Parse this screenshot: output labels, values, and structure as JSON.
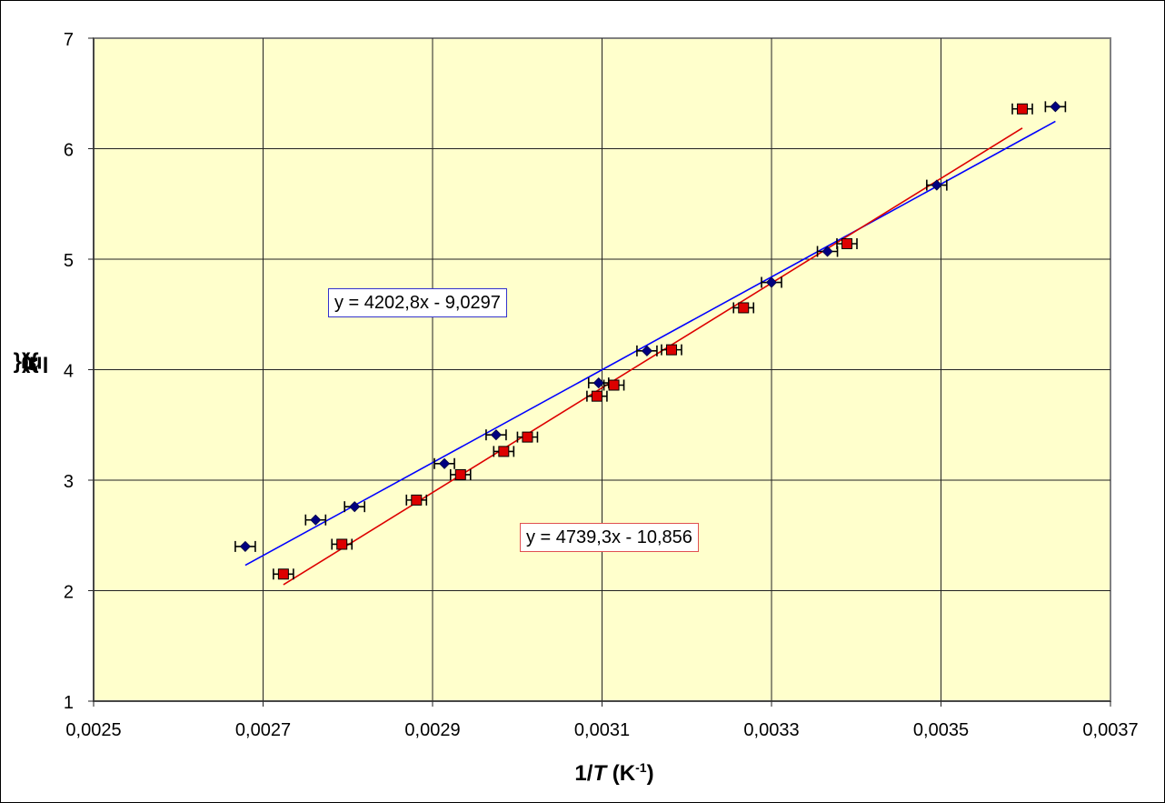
{
  "chart_data": {
    "type": "scatter",
    "title": "",
    "xlabel": "1/T (K-1)",
    "xlabel_parts": {
      "prefix": "1/",
      "var": "T",
      "unit_open": " (K",
      "unit_sup": "-1",
      "unit_close": ")"
    },
    "ylabel": "ln({R})",
    "ylabel_parts": {
      "prefix": "ln({",
      "var": "R",
      "suffix": "})"
    },
    "xlim": [
      0.0025,
      0.0037
    ],
    "ylim": [
      1,
      7
    ],
    "x_ticks": [
      "0,0025",
      "0,0027",
      "0,0029",
      "0,0031",
      "0,0033",
      "0,0035",
      "0,0037"
    ],
    "x_tick_values": [
      0.0025,
      0.0027,
      0.0029,
      0.0031,
      0.0033,
      0.0035,
      0.0037
    ],
    "y_ticks": [
      "1",
      "2",
      "3",
      "4",
      "5",
      "6",
      "7"
    ],
    "y_tick_values": [
      1,
      2,
      3,
      4,
      5,
      6,
      7
    ],
    "grid": true,
    "background": "#ffffcc",
    "legend": null,
    "x_error": 1.18e-05,
    "series": [
      {
        "name": "Series 1 (blue diamonds)",
        "marker": "diamond",
        "color": "#000080",
        "trendline_color": "#0000ff",
        "trendline_equation": "y = 4202,8x - 9,0297",
        "slope": 4202.8,
        "intercept": -9.0297,
        "trendline_x": [
          0.002679,
          0.003635
        ],
        "x": [
          0.002679,
          0.002762,
          0.002808,
          0.002914,
          0.002975,
          0.003096,
          0.003153,
          0.0033,
          0.003366,
          0.003495,
          0.003635
        ],
        "y": [
          2.4,
          2.64,
          2.76,
          3.15,
          3.41,
          3.88,
          4.17,
          4.79,
          5.07,
          5.67,
          6.38
        ]
      },
      {
        "name": "Series 2 (red squares)",
        "marker": "square",
        "color": "#dd0000",
        "trendline_color": "#dd0000",
        "trendline_equation": "y = 4739,3x - 10,856",
        "slope": 4739.3,
        "intercept": -10.856,
        "trendline_x": [
          0.002724,
          0.003596
        ],
        "x": [
          0.002724,
          0.002793,
          0.002881,
          0.002933,
          0.002984,
          0.003012,
          0.003094,
          0.003114,
          0.003182,
          0.003267,
          0.003389,
          0.003596
        ],
        "y": [
          2.15,
          2.42,
          2.82,
          3.05,
          3.26,
          3.39,
          3.76,
          3.86,
          4.18,
          4.56,
          5.14,
          6.36
        ]
      }
    ],
    "annotations": [
      "y = 4202,8x - 9,0297",
      "y = 4739,3x - 10,856"
    ]
  }
}
